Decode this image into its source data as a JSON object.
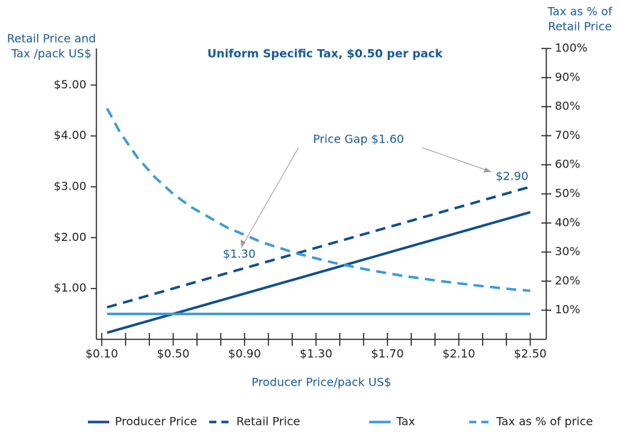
{
  "chart_data": {
    "type": "line",
    "title": "Uniform Specific Tax, $0.50 per pack",
    "y_label": [
      "Retail Price and",
      "Tax /pack US$"
    ],
    "y2_label": [
      "Tax as % of",
      "Retail Price"
    ],
    "x_label": "Producer Price/pack US$",
    "x": [
      0.13,
      0.2,
      0.3,
      0.4,
      0.5,
      0.6,
      0.8,
      1.0,
      1.2,
      1.4,
      1.6,
      1.8,
      2.0,
      2.2,
      2.4,
      2.5
    ],
    "series": [
      {
        "name": "Producer Price",
        "color": "#0d4f8b",
        "dash": false,
        "values": [
          0.13,
          0.2,
          0.3,
          0.4,
          0.5,
          0.6,
          0.8,
          1.0,
          1.2,
          1.4,
          1.6,
          1.8,
          2.0,
          2.2,
          2.4,
          2.5
        ]
      },
      {
        "name": "Retail Price",
        "color": "#0d4f8b",
        "dash": true,
        "values": [
          0.63,
          0.7,
          0.8,
          0.9,
          1.0,
          1.1,
          1.3,
          1.5,
          1.7,
          1.9,
          2.1,
          2.3,
          2.5,
          2.7,
          2.9,
          3.0
        ]
      },
      {
        "name": "Tax",
        "color": "#3b9ad7",
        "dash": false,
        "values": [
          0.5,
          0.5,
          0.5,
          0.5,
          0.5,
          0.5,
          0.5,
          0.5,
          0.5,
          0.5,
          0.5,
          0.5,
          0.5,
          0.5,
          0.5,
          0.5
        ]
      },
      {
        "name": "Tax as % of price",
        "color": "#3b9ad7",
        "dash": true,
        "axis": "y2",
        "values": [
          79.4,
          71.4,
          62.5,
          55.6,
          50,
          45.5,
          38.5,
          33.3,
          29.4,
          26.3,
          23.8,
          21.7,
          20,
          18.5,
          17.2,
          16.7
        ]
      }
    ],
    "xlim": [
      0.07,
      2.59
    ],
    "xticks": [
      {
        "value": 0.1,
        "label": "$0.10"
      },
      {
        "value": 0.5,
        "label": "$0.50"
      },
      {
        "value": 0.9,
        "label": "$0.90"
      },
      {
        "value": 1.3,
        "label": "$1.30"
      },
      {
        "value": 1.7,
        "label": "$1.70"
      },
      {
        "value": 2.1,
        "label": "$2.10"
      },
      {
        "value": 2.5,
        "label": "$2.50"
      }
    ],
    "ylim": [
      0,
      5.72
    ],
    "yticks": [
      {
        "value": 1,
        "label": "$1.00"
      },
      {
        "value": 2,
        "label": "$2.00"
      },
      {
        "value": 3,
        "label": "$3.00"
      },
      {
        "value": 4,
        "label": "$4.00"
      },
      {
        "value": 5,
        "label": "$5.00"
      }
    ],
    "y2lim": [
      0,
      100
    ],
    "y2ticks": [
      {
        "value": 10,
        "label": "10%"
      },
      {
        "value": 20,
        "label": "20%"
      },
      {
        "value": 30,
        "label": "30%"
      },
      {
        "value": 40,
        "label": "40%"
      },
      {
        "value": 50,
        "label": "50%"
      },
      {
        "value": 60,
        "label": "60%"
      },
      {
        "value": 70,
        "label": "70%"
      },
      {
        "value": 80,
        "label": "80%"
      },
      {
        "value": 90,
        "label": "90%"
      },
      {
        "value": 100,
        "label": "100%"
      }
    ],
    "annotations": [
      "Price Gap $1.60",
      "$1.30",
      "$2.90"
    ],
    "legend": "bottom"
  }
}
